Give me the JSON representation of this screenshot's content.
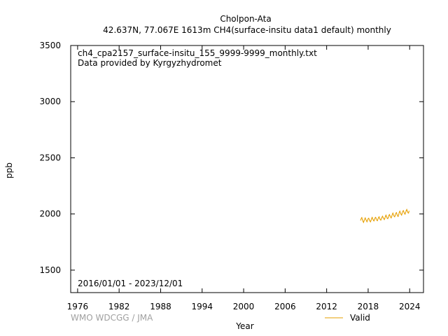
{
  "header": {
    "title": "Cholpon-Ata",
    "subtitle": "42.637N, 77.067E 1613m    CH4(surface-insitu data1 default) monthly"
  },
  "annotations": {
    "filename": "ch4_cpa2157_surface-insitu_155_9999-9999_monthly.txt",
    "provider": "Data provided by Kyrgyzhydromet",
    "period": "2016/01/01 - 2023/12/01"
  },
  "credit": "WMO WDCGG / JMA",
  "colors": {
    "valid": "#e69f00",
    "axis": "#000000",
    "credit": "#a0a0a0"
  },
  "chart_data": {
    "type": "line",
    "xlabel": "Year",
    "ylabel": "ppb",
    "xlim": [
      1975,
      2026
    ],
    "ylim": [
      1300,
      3500
    ],
    "x_ticks": [
      1976,
      1982,
      1988,
      1994,
      2000,
      2006,
      2012,
      2018,
      2024
    ],
    "y_ticks": [
      1500,
      2000,
      2500,
      3000,
      3500
    ],
    "grid": false,
    "legend": "bottom-right",
    "series": [
      {
        "name": "Valid",
        "x": [
          "2016-12",
          "2017-01",
          "2017-02",
          "2017-03",
          "2017-04",
          "2017-05",
          "2017-06",
          "2017-07",
          "2017-08",
          "2017-09",
          "2017-10",
          "2017-11",
          "2017-12",
          "2018-01",
          "2018-02",
          "2018-03",
          "2018-04",
          "2018-05",
          "2018-06",
          "2018-07",
          "2018-08",
          "2018-09",
          "2018-10",
          "2018-11",
          "2018-12",
          "2019-01",
          "2019-02",
          "2019-03",
          "2019-04",
          "2019-05",
          "2019-06",
          "2019-07",
          "2019-08",
          "2019-09",
          "2019-10",
          "2019-11",
          "2019-12",
          "2020-01",
          "2020-02",
          "2020-03",
          "2020-04",
          "2020-05",
          "2020-06",
          "2020-07",
          "2020-08",
          "2020-09",
          "2020-10",
          "2020-11",
          "2020-12",
          "2021-01",
          "2021-02",
          "2021-03",
          "2021-04",
          "2021-05",
          "2021-06",
          "2021-07",
          "2021-08",
          "2021-09",
          "2021-10",
          "2021-11",
          "2021-12",
          "2022-01",
          "2022-02",
          "2022-03",
          "2022-04",
          "2022-05",
          "2022-06",
          "2022-07",
          "2022-08",
          "2022-09",
          "2022-10",
          "2022-11",
          "2022-12",
          "2023-01",
          "2023-02",
          "2023-03",
          "2023-04",
          "2023-05",
          "2023-06",
          "2023-07",
          "2023-08",
          "2023-09",
          "2023-10",
          "2023-11",
          "2023-12"
        ],
        "values": [
          1945,
          1960,
          1968,
          1950,
          1935,
          1925,
          1940,
          1955,
          1965,
          1950,
          1940,
          1930,
          1945,
          1958,
          1962,
          1950,
          1938,
          1930,
          1942,
          1960,
          1970,
          1955,
          1945,
          1938,
          1950,
          1965,
          1970,
          1958,
          1945,
          1940,
          1955,
          1968,
          1975,
          1960,
          1950,
          1945,
          1958,
          1972,
          1980,
          1968,
          1958,
          1950,
          1962,
          1980,
          1990,
          1975,
          1962,
          1958,
          1970,
          1988,
          1995,
          1982,
          1972,
          1965,
          1980,
          1998,
          2008,
          1992,
          1980,
          1975,
          1988,
          2005,
          2012,
          1998,
          1985,
          1978,
          1995,
          2015,
          2025,
          2010,
          1998,
          1990,
          2005,
          2022,
          2030,
          2018,
          2005,
          1998,
          2012,
          2030,
          2040,
          2025,
          2012,
          2008,
          2025
        ]
      }
    ]
  }
}
